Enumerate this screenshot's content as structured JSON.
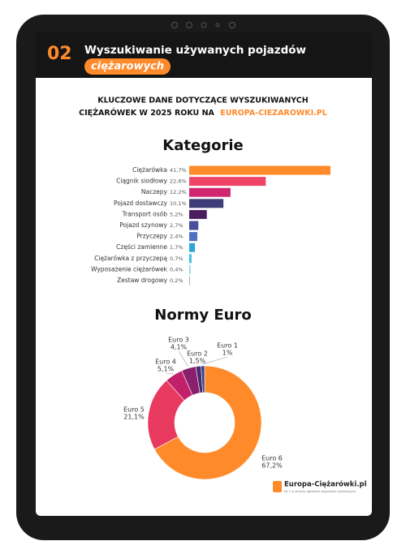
{
  "header": {
    "number": "02",
    "title": "Wyszukiwanie używanych pojazdów",
    "highlight": "ciężarowych"
  },
  "subtitle": {
    "line1": "KLUCZOWE DANE DOTYCZĄCE WYSZUKIWANYCH",
    "line2": "CIĘŻARÓWEK W 2025 ROKU NA",
    "site": "EUROPA-CIEZAROWKI.PL"
  },
  "chart_data": [
    {
      "type": "bar",
      "title": "Kategorie",
      "categories": [
        "Ciężarówka",
        "Ciągnik siodłowy",
        "Naczepy",
        "Pojazd dostawczy",
        "Transport osób",
        "Pojazd szynowy",
        "Przyczepy",
        "Części zamienne",
        "Ciężarówka z przyczepą",
        "Wyposażenie ciężarówek",
        "Zestaw drogowy"
      ],
      "values": [
        41.7,
        22.6,
        12.2,
        10.1,
        5.2,
        2.7,
        2.4,
        1.7,
        0.7,
        0.4,
        0.2
      ],
      "value_labels": [
        "41,7%",
        "22,6%",
        "12,2%",
        "10,1%",
        "5,2%",
        "2,7%",
        "2,4%",
        "1,7%",
        "0,7%",
        "0,4%",
        "0,2%"
      ],
      "colors": [
        "#ff8a2a",
        "#ee4468",
        "#d02670",
        "#3e3d78",
        "#4b1d5e",
        "#4a4c9c",
        "#4f72c4",
        "#2fa6d8",
        "#3cc3e2",
        "#86d6ea",
        "#b0b0b0"
      ]
    },
    {
      "type": "pie",
      "title": "Normy Euro",
      "categories": [
        "Euro 6",
        "Euro 5",
        "Euro 4",
        "Euro 3",
        "Euro 2",
        "Euro 1"
      ],
      "values": [
        67.2,
        21.1,
        5.1,
        4.1,
        1.5,
        1
      ],
      "value_labels": [
        "67,2%",
        "21,1%",
        "5,1%",
        "4,1%",
        "1,5%",
        "1%"
      ],
      "colors": [
        "#ff8a2a",
        "#e8395f",
        "#c2206b",
        "#8a1f6e",
        "#4a2a6e",
        "#3a3f8a"
      ]
    }
  ],
  "footer": {
    "brand": "Europa-Ciężarówki.pl",
    "tagline": "Nr 1 w branży ogłoszeń pojazdów ciężarowych"
  }
}
